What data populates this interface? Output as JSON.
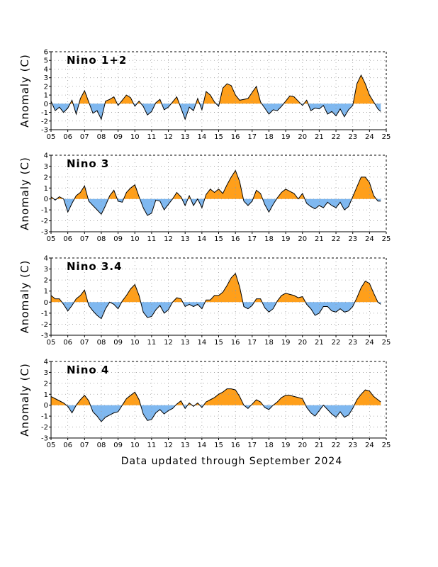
{
  "footer": "Data updated through September 2024",
  "colors": {
    "positive": "#ff9f1a",
    "negative": "#7fb8f0",
    "line": "#000000",
    "grid": "#999999"
  },
  "chart_data": [
    {
      "type": "area",
      "title": "Nino 1+2",
      "ylabel": "Anomaly (C)",
      "xlim": [
        2005,
        2025
      ],
      "ylim": [
        -3,
        6
      ],
      "yticks": [
        -3,
        -2,
        -1,
        0,
        1,
        2,
        3,
        4,
        5,
        6
      ],
      "xticks": [
        "05",
        "06",
        "07",
        "08",
        "09",
        "10",
        "11",
        "12",
        "13",
        "14",
        "15",
        "16",
        "17",
        "18",
        "19",
        "20",
        "21",
        "22",
        "23",
        "24",
        "25"
      ],
      "grid": true,
      "x": [
        2005.0,
        2005.25,
        2005.5,
        2005.75,
        2006.0,
        2006.25,
        2006.5,
        2006.75,
        2007.0,
        2007.25,
        2007.5,
        2007.75,
        2008.0,
        2008.25,
        2008.5,
        2008.75,
        2009.0,
        2009.25,
        2009.5,
        2009.75,
        2010.0,
        2010.25,
        2010.5,
        2010.75,
        2011.0,
        2011.25,
        2011.5,
        2011.75,
        2012.0,
        2012.25,
        2012.5,
        2012.75,
        2013.0,
        2013.25,
        2013.5,
        2013.75,
        2014.0,
        2014.25,
        2014.5,
        2014.75,
        2015.0,
        2015.25,
        2015.5,
        2015.75,
        2016.0,
        2016.25,
        2016.5,
        2016.75,
        2017.0,
        2017.25,
        2017.5,
        2017.75,
        2018.0,
        2018.25,
        2018.5,
        2018.75,
        2019.0,
        2019.25,
        2019.5,
        2019.75,
        2020.0,
        2020.25,
        2020.5,
        2020.75,
        2021.0,
        2021.25,
        2021.5,
        2021.75,
        2022.0,
        2022.25,
        2022.5,
        2022.75,
        2023.0,
        2023.25,
        2023.5,
        2023.75,
        2024.0,
        2024.25,
        2024.5,
        2024.67
      ],
      "values": [
        0.3,
        -0.8,
        -0.4,
        -1.0,
        -0.5,
        0.4,
        -1.2,
        0.6,
        1.5,
        0.2,
        -1.1,
        -0.8,
        -1.8,
        0.3,
        0.5,
        0.8,
        -0.2,
        0.4,
        1.0,
        0.7,
        -0.3,
        0.3,
        -0.3,
        -1.3,
        -0.9,
        0.1,
        0.5,
        -0.7,
        -0.4,
        0.2,
        0.8,
        -0.5,
        -1.8,
        -0.4,
        -0.8,
        0.6,
        -0.7,
        1.4,
        1.0,
        0.2,
        -0.3,
        1.8,
        2.3,
        2.1,
        1.0,
        0.4,
        0.5,
        0.6,
        1.3,
        2.0,
        0.2,
        -0.5,
        -1.2,
        -0.7,
        -0.8,
        -0.3,
        0.3,
        0.9,
        0.8,
        0.3,
        -0.2,
        0.4,
        -0.8,
        -0.5,
        -0.6,
        -0.2,
        -1.2,
        -0.9,
        -1.4,
        -0.6,
        -1.5,
        -0.7,
        -0.2,
        2.3,
        3.3,
        2.3,
        1.0,
        0.2,
        -0.6,
        -0.9
      ]
    },
    {
      "type": "area",
      "title": "Nino 3",
      "ylabel": "Anomaly (C)",
      "xlim": [
        2005,
        2025
      ],
      "ylim": [
        -3,
        4
      ],
      "yticks": [
        -3,
        -2,
        -1,
        0,
        1,
        2,
        3,
        4
      ],
      "xticks": [
        "05",
        "06",
        "07",
        "08",
        "09",
        "10",
        "11",
        "12",
        "13",
        "14",
        "15",
        "16",
        "17",
        "18",
        "19",
        "20",
        "21",
        "22",
        "23",
        "24",
        "25"
      ],
      "grid": true,
      "x": [
        2005.0,
        2005.25,
        2005.5,
        2005.75,
        2006.0,
        2006.25,
        2006.5,
        2006.75,
        2007.0,
        2007.25,
        2007.5,
        2007.75,
        2008.0,
        2008.25,
        2008.5,
        2008.75,
        2009.0,
        2009.25,
        2009.5,
        2009.75,
        2010.0,
        2010.25,
        2010.5,
        2010.75,
        2011.0,
        2011.25,
        2011.5,
        2011.75,
        2012.0,
        2012.25,
        2012.5,
        2012.75,
        2013.0,
        2013.25,
        2013.5,
        2013.75,
        2014.0,
        2014.25,
        2014.5,
        2014.75,
        2015.0,
        2015.25,
        2015.5,
        2015.75,
        2016.0,
        2016.25,
        2016.5,
        2016.75,
        2017.0,
        2017.25,
        2017.5,
        2017.75,
        2018.0,
        2018.25,
        2018.5,
        2018.75,
        2019.0,
        2019.25,
        2019.5,
        2019.75,
        2020.0,
        2020.25,
        2020.5,
        2020.75,
        2021.0,
        2021.25,
        2021.5,
        2021.75,
        2022.0,
        2022.25,
        2022.5,
        2022.75,
        2023.0,
        2023.25,
        2023.5,
        2023.75,
        2024.0,
        2024.25,
        2024.5,
        2024.67
      ],
      "values": [
        0.2,
        -0.1,
        0.2,
        0.0,
        -1.2,
        -0.4,
        0.3,
        0.6,
        1.2,
        -0.2,
        -0.6,
        -1.0,
        -1.4,
        -0.6,
        0.3,
        0.8,
        -0.2,
        -0.3,
        0.6,
        1.0,
        1.3,
        0.2,
        -0.8,
        -1.5,
        -1.3,
        -0.1,
        -0.2,
        -1.0,
        -0.5,
        0.0,
        0.6,
        0.2,
        -0.6,
        0.3,
        -0.6,
        0.0,
        -0.8,
        0.4,
        0.9,
        0.6,
        0.9,
        0.5,
        1.3,
        2.0,
        2.6,
        1.6,
        -0.2,
        -0.6,
        -0.2,
        0.8,
        0.5,
        -0.5,
        -1.2,
        -0.5,
        0.1,
        0.6,
        0.9,
        0.7,
        0.5,
        0.0,
        0.5,
        -0.4,
        -0.7,
        -0.9,
        -0.6,
        -0.8,
        -0.3,
        -0.6,
        -0.8,
        -0.3,
        -1.0,
        -0.7,
        0.2,
        1.1,
        2.0,
        2.0,
        1.5,
        0.3,
        -0.2,
        -0.2
      ]
    },
    {
      "type": "area",
      "title": "Nino 3.4",
      "ylabel": "Anomaly (C)",
      "xlim": [
        2005,
        2025
      ],
      "ylim": [
        -3,
        4
      ],
      "yticks": [
        -3,
        -2,
        -1,
        0,
        1,
        2,
        3,
        4
      ],
      "xticks": [
        "05",
        "06",
        "07",
        "08",
        "09",
        "10",
        "11",
        "12",
        "13",
        "14",
        "15",
        "16",
        "17",
        "18",
        "19",
        "20",
        "21",
        "22",
        "23",
        "24",
        "25"
      ],
      "grid": true,
      "x": [
        2005.0,
        2005.25,
        2005.5,
        2005.75,
        2006.0,
        2006.25,
        2006.5,
        2006.75,
        2007.0,
        2007.25,
        2007.5,
        2007.75,
        2008.0,
        2008.25,
        2008.5,
        2008.75,
        2009.0,
        2009.25,
        2009.5,
        2009.75,
        2010.0,
        2010.25,
        2010.5,
        2010.75,
        2011.0,
        2011.25,
        2011.5,
        2011.75,
        2012.0,
        2012.25,
        2012.5,
        2012.75,
        2013.0,
        2013.25,
        2013.5,
        2013.75,
        2014.0,
        2014.25,
        2014.5,
        2014.75,
        2015.0,
        2015.25,
        2015.5,
        2015.75,
        2016.0,
        2016.25,
        2016.5,
        2016.75,
        2017.0,
        2017.25,
        2017.5,
        2017.75,
        2018.0,
        2018.25,
        2018.5,
        2018.75,
        2019.0,
        2019.25,
        2019.5,
        2019.75,
        2020.0,
        2020.25,
        2020.5,
        2020.75,
        2021.0,
        2021.25,
        2021.5,
        2021.75,
        2022.0,
        2022.25,
        2022.5,
        2022.75,
        2023.0,
        2023.25,
        2023.5,
        2023.75,
        2024.0,
        2024.25,
        2024.5,
        2024.67
      ],
      "values": [
        0.6,
        0.3,
        0.3,
        -0.2,
        -0.8,
        -0.3,
        0.3,
        0.6,
        1.1,
        -0.3,
        -0.8,
        -1.2,
        -1.5,
        -0.6,
        0.0,
        -0.2,
        -0.6,
        0.1,
        0.6,
        1.2,
        1.6,
        0.6,
        -0.9,
        -1.4,
        -1.3,
        -0.7,
        -0.3,
        -1.0,
        -0.7,
        0.0,
        0.4,
        0.3,
        -0.4,
        -0.2,
        -0.4,
        -0.2,
        -0.6,
        0.2,
        0.2,
        0.6,
        0.6,
        0.9,
        1.5,
        2.2,
        2.6,
        1.4,
        -0.4,
        -0.6,
        -0.3,
        0.3,
        0.3,
        -0.5,
        -0.9,
        -0.6,
        0.1,
        0.6,
        0.8,
        0.7,
        0.6,
        0.4,
        0.5,
        -0.2,
        -0.6,
        -1.2,
        -1.0,
        -0.4,
        -0.4,
        -0.8,
        -0.9,
        -0.6,
        -0.9,
        -0.8,
        -0.4,
        0.4,
        1.3,
        1.9,
        1.7,
        0.8,
        0.0,
        -0.2
      ]
    },
    {
      "type": "area",
      "title": "Nino 4",
      "ylabel": "Anomaly (C)",
      "xlim": [
        2005,
        2025
      ],
      "ylim": [
        -3,
        4
      ],
      "yticks": [
        -3,
        -2,
        -1,
        0,
        1,
        2,
        3,
        4
      ],
      "xticks": [
        "05",
        "06",
        "07",
        "08",
        "09",
        "10",
        "11",
        "12",
        "13",
        "14",
        "15",
        "16",
        "17",
        "18",
        "19",
        "20",
        "21",
        "22",
        "23",
        "24",
        "25"
      ],
      "grid": true,
      "x": [
        2005.0,
        2005.25,
        2005.5,
        2005.75,
        2006.0,
        2006.25,
        2006.5,
        2006.75,
        2007.0,
        2007.25,
        2007.5,
        2007.75,
        2008.0,
        2008.25,
        2008.5,
        2008.75,
        2009.0,
        2009.25,
        2009.5,
        2009.75,
        2010.0,
        2010.25,
        2010.5,
        2010.75,
        2011.0,
        2011.25,
        2011.5,
        2011.75,
        2012.0,
        2012.25,
        2012.5,
        2012.75,
        2013.0,
        2013.25,
        2013.5,
        2013.75,
        2014.0,
        2014.25,
        2014.5,
        2014.75,
        2015.0,
        2015.25,
        2015.5,
        2015.75,
        2016.0,
        2016.25,
        2016.5,
        2016.75,
        2017.0,
        2017.25,
        2017.5,
        2017.75,
        2018.0,
        2018.25,
        2018.5,
        2018.75,
        2019.0,
        2019.25,
        2019.5,
        2019.75,
        2020.0,
        2020.25,
        2020.5,
        2020.75,
        2021.0,
        2021.25,
        2021.5,
        2021.75,
        2022.0,
        2022.25,
        2022.5,
        2022.75,
        2023.0,
        2023.25,
        2023.5,
        2023.75,
        2024.0,
        2024.25,
        2024.5,
        2024.67
      ],
      "values": [
        0.8,
        0.6,
        0.4,
        0.2,
        -0.1,
        -0.7,
        0.0,
        0.5,
        0.9,
        0.4,
        -0.6,
        -1.0,
        -1.5,
        -1.1,
        -0.9,
        -0.7,
        -0.6,
        0.0,
        0.6,
        0.9,
        1.2,
        0.5,
        -0.8,
        -1.4,
        -1.3,
        -0.7,
        -0.4,
        -0.8,
        -0.5,
        -0.3,
        0.1,
        0.4,
        -0.3,
        0.2,
        -0.1,
        0.2,
        -0.2,
        0.3,
        0.5,
        0.7,
        1.0,
        1.2,
        1.5,
        1.5,
        1.4,
        0.8,
        0.0,
        -0.3,
        0.1,
        0.5,
        0.3,
        -0.2,
        -0.4,
        0.0,
        0.3,
        0.7,
        0.9,
        0.9,
        0.8,
        0.7,
        0.6,
        -0.2,
        -0.7,
        -1.0,
        -0.5,
        0.0,
        -0.4,
        -0.8,
        -1.1,
        -0.6,
        -1.1,
        -0.9,
        -0.3,
        0.5,
        1.0,
        1.4,
        1.3,
        0.8,
        0.5,
        0.3
      ]
    }
  ]
}
